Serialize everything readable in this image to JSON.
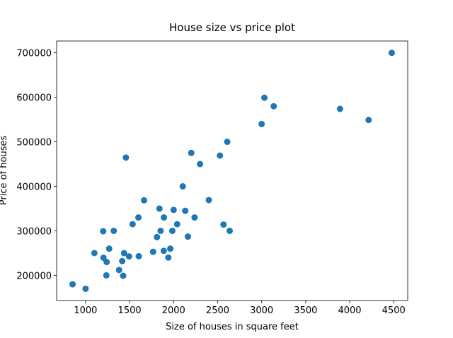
{
  "chart_data": {
    "type": "scatter",
    "title": "House size vs price plot",
    "x_label": "Size of houses in square feet",
    "y_label": "Price of houses",
    "color": "#1f77b4",
    "x": [
      2104,
      1600,
      2400,
      1416,
      3000,
      1985,
      1534,
      1427,
      1380,
      1494,
      1940,
      2000,
      1890,
      4478,
      1268,
      2300,
      1320,
      1236,
      2609,
      3031,
      1767,
      1888,
      1604,
      1962,
      3890,
      1100,
      1458,
      2526,
      2200,
      2637,
      1839,
      1000,
      2040,
      3137,
      1811,
      1437,
      1239,
      2132,
      4215,
      2162,
      1664,
      2238,
      2567,
      1200,
      852,
      1852,
      1203
    ],
    "values": [
      399900,
      329900,
      369000,
      232000,
      539900,
      299900,
      314900,
      198999,
      212000,
      242500,
      239999,
      347000,
      329999,
      699900,
      259900,
      449900,
      299900,
      199900,
      499998,
      599000,
      252900,
      255000,
      242900,
      259900,
      573900,
      249900,
      464500,
      469000,
      475000,
      299900,
      349900,
      169900,
      314900,
      579900,
      285900,
      249900,
      229900,
      345000,
      549000,
      287000,
      368500,
      329900,
      314000,
      299000,
      179900,
      299900,
      239500
    ],
    "xlim": [
      671,
      4659
    ],
    "ylim": [
      143400,
      726400
    ],
    "xticks": [
      1000,
      1500,
      2000,
      2500,
      3000,
      3500,
      4000,
      4500
    ],
    "yticks": [
      200000,
      300000,
      400000,
      500000,
      600000,
      700000
    ]
  }
}
